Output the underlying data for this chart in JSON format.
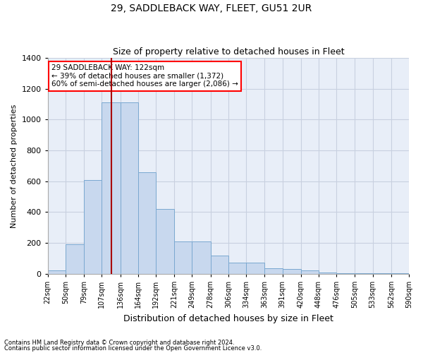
{
  "title": "29, SADDLEBACK WAY, FLEET, GU51 2UR",
  "subtitle": "Size of property relative to detached houses in Fleet",
  "xlabel": "Distribution of detached houses by size in Fleet",
  "ylabel": "Number of detached properties",
  "footnote1": "Contains HM Land Registry data © Crown copyright and database right 2024.",
  "footnote2": "Contains public sector information licensed under the Open Government Licence v3.0.",
  "annotation_line1": "29 SADDLEBACK WAY: 122sqm",
  "annotation_line2": "← 39% of detached houses are smaller (1,372)",
  "annotation_line3": "60% of semi-detached houses are larger (2,086) →",
  "bar_color": "#c8d8ee",
  "bar_edge_color": "#7aa8d0",
  "grid_color": "#c8d0e0",
  "vline_x": 122,
  "vline_color": "#aa0000",
  "bin_edges": [
    22,
    50,
    79,
    107,
    136,
    164,
    192,
    221,
    249,
    278,
    306,
    334,
    363,
    391,
    420,
    448,
    476,
    505,
    533,
    562,
    590
  ],
  "bin_counts": [
    20,
    190,
    610,
    1110,
    1110,
    660,
    420,
    210,
    210,
    120,
    70,
    70,
    35,
    30,
    20,
    10,
    5,
    5,
    5,
    5
  ],
  "ylim": [
    0,
    1400
  ],
  "yticks": [
    0,
    200,
    400,
    600,
    800,
    1000,
    1200,
    1400
  ],
  "bg_color": "#e8eef8"
}
